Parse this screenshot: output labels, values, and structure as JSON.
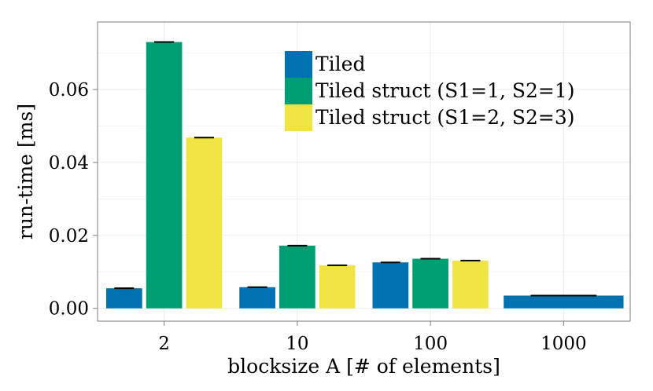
{
  "chart_data": {
    "type": "bar",
    "title": "",
    "xlabel": "blocksize A [# of elements]",
    "ylabel": "run-time [ms]",
    "categories": [
      "2",
      "10",
      "100",
      "1000"
    ],
    "ylim": [
      -0.0035,
      0.0785
    ],
    "y_ticks": [
      0.0,
      0.02,
      0.04,
      0.06
    ],
    "y_tick_labels": [
      "0.00",
      "0.02",
      "0.04",
      "0.06"
    ],
    "grid": true,
    "legend_position": "top-center",
    "error_bars": true,
    "series": [
      {
        "name": "Tiled",
        "color": "#0072B2",
        "values": [
          0.0055,
          0.0058,
          0.0126,
          0.0035
        ]
      },
      {
        "name": "Tiled struct (S1=1, S2=1)",
        "color": "#009E73",
        "values": [
          0.073,
          0.0172,
          0.0136,
          null
        ]
      },
      {
        "name": "Tiled struct (S1=2, S2=3)",
        "color": "#F0E442",
        "values": [
          0.0468,
          0.0118,
          0.0131,
          null
        ]
      }
    ]
  }
}
